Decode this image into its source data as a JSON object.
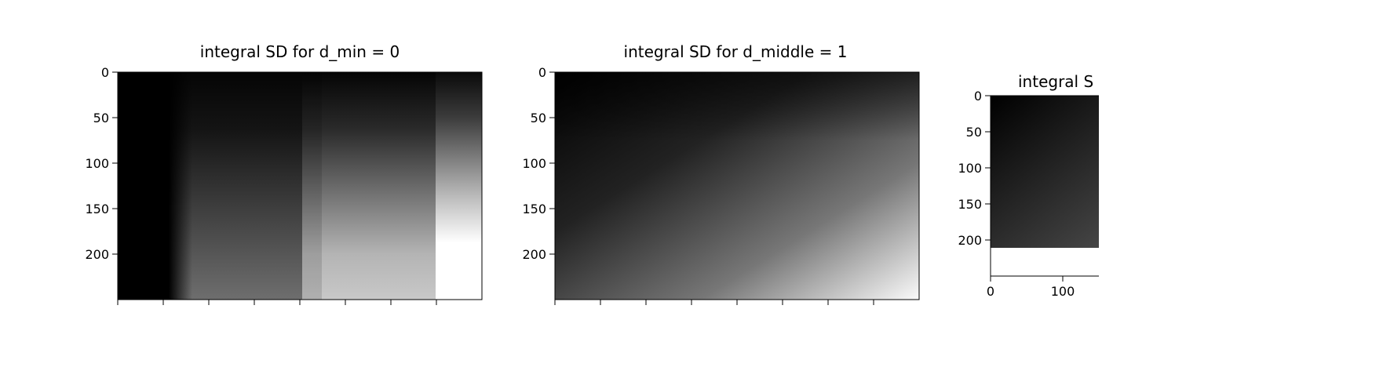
{
  "chart_data": [
    {
      "type": "heatmap",
      "title": "integral SD for d_min =  0",
      "colormap": "gray",
      "y_ticks": [
        "0",
        "50",
        "100",
        "150",
        "200"
      ],
      "y_tick_values": [
        0,
        50,
        100,
        150,
        200
      ],
      "ylim": [
        0,
        250
      ],
      "xlim": [
        0,
        400
      ],
      "x_ticks_labeled": false,
      "x_tick_values": [
        0,
        50,
        100,
        150,
        200,
        250,
        300,
        350
      ],
      "description_values": {
        "column_bands": [
          {
            "x": [
              0,
              60
            ],
            "intensity_top": 0.0,
            "intensity_bottom": 0.0
          },
          {
            "x": [
              60,
              210
            ],
            "intensity_top": 0.05,
            "intensity_bottom": 0.45
          },
          {
            "x": [
              210,
              360
            ],
            "intensity_top": 0.05,
            "intensity_bottom": 0.75
          },
          {
            "x": [
              360,
              400
            ],
            "intensity_top": 0.1,
            "intensity_bottom": 1.0
          }
        ]
      }
    },
    {
      "type": "heatmap",
      "title": "integral SD for d_middle =  1",
      "colormap": "gray",
      "y_ticks": [
        "0",
        "50",
        "100",
        "150",
        "200"
      ],
      "y_tick_values": [
        0,
        50,
        100,
        150,
        200
      ],
      "ylim": [
        0,
        250
      ],
      "xlim": [
        0,
        400
      ],
      "x_ticks_labeled": false,
      "x_tick_values": [
        0,
        50,
        100,
        150,
        200,
        250,
        300,
        350
      ],
      "description_values": {
        "gradient": "diagonal",
        "intensity_top_left": 0.0,
        "intensity_bottom_right": 1.0
      }
    },
    {
      "type": "heatmap",
      "title": "integral S",
      "colormap": "gray",
      "clipped_right": true,
      "y_ticks": [
        "0",
        "50",
        "100",
        "150",
        "200"
      ],
      "y_tick_values": [
        0,
        50,
        100,
        150,
        200
      ],
      "ylim": [
        0,
        250
      ],
      "x_ticks": [
        "0",
        "100"
      ],
      "x_tick_values": [
        0,
        100
      ],
      "description_values": {
        "gradient": "diagonal",
        "intensity_top_left": 0.0,
        "intensity_bottom_right": 0.45
      }
    }
  ]
}
